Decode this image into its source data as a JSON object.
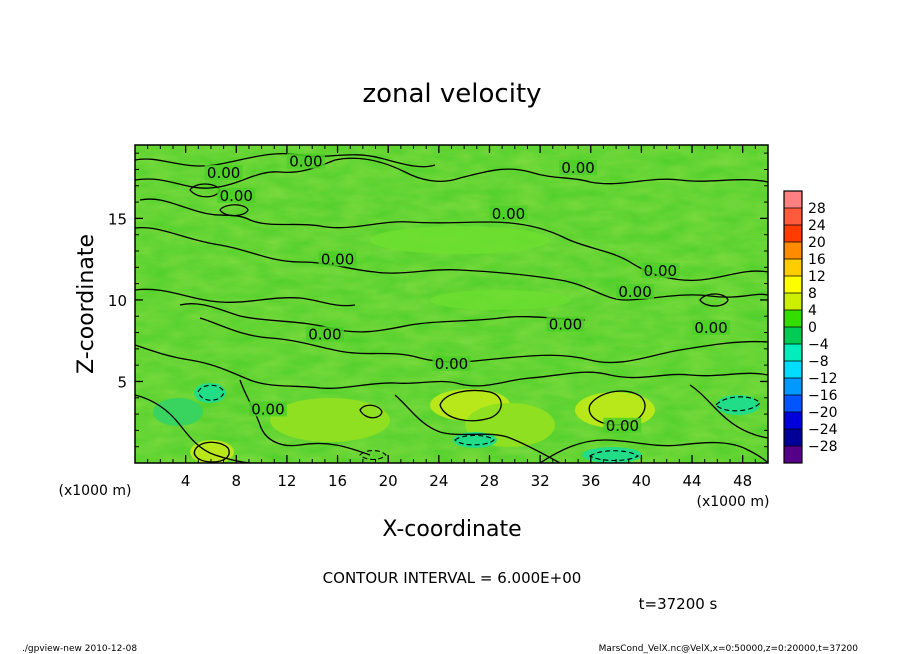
{
  "chart_data": {
    "type": "heatmap",
    "title": "zonal velocity",
    "xlabel": "X-coordinate",
    "ylabel": "Z-coordinate",
    "x_unit_label": "(x1000 m)",
    "y_unit_label": "(x1000 m)",
    "xlim": [
      0,
      50
    ],
    "ylim": [
      0,
      19.5
    ],
    "x_ticks": [
      4,
      8,
      12,
      16,
      20,
      24,
      28,
      32,
      36,
      40,
      44,
      48
    ],
    "y_ticks": [
      5,
      10,
      15
    ],
    "x_tick_labels": [
      "4",
      "8",
      "12",
      "16",
      "20",
      "24",
      "28",
      "32",
      "36",
      "40",
      "44",
      "48"
    ],
    "y_tick_labels": [
      "5",
      "10",
      "15"
    ],
    "colorbar": {
      "levels": [
        28,
        24,
        20,
        16,
        12,
        8,
        4,
        0,
        -4,
        -8,
        -12,
        -16,
        -20,
        -24,
        -28
      ],
      "labels": [
        "28",
        "24",
        "20",
        "16",
        "12",
        "8",
        "4",
        "0",
        "−4",
        "−8",
        "−12",
        "−16",
        "−20",
        "−24",
        "−28"
      ],
      "colors": [
        "#ff8080",
        "#ff5a3c",
        "#ff3c00",
        "#ff8c00",
        "#ffcc00",
        "#ffff00",
        "#ccee00",
        "#33dd00",
        "#00cc55",
        "#00eebb",
        "#00ddff",
        "#0099ff",
        "#0055ff",
        "#0000dd",
        "#000099",
        "#550088"
      ]
    },
    "contour_labels": [
      {
        "x": 7,
        "z": 17.6,
        "text": "0.00"
      },
      {
        "x": 8,
        "z": 16.2,
        "text": "0.00"
      },
      {
        "x": 13.5,
        "z": 18.3,
        "text": "0.00"
      },
      {
        "x": 35,
        "z": 17.9,
        "text": "0.00"
      },
      {
        "x": 29.5,
        "z": 15.1,
        "text": "0.00"
      },
      {
        "x": 16,
        "z": 12.3,
        "text": "0.00"
      },
      {
        "x": 41.5,
        "z": 11.6,
        "text": "0.00"
      },
      {
        "x": 39.5,
        "z": 10.3,
        "text": "0.00"
      },
      {
        "x": 34,
        "z": 8.3,
        "text": "0.00"
      },
      {
        "x": 45.5,
        "z": 8.1,
        "text": "0.00"
      },
      {
        "x": 15,
        "z": 7.7,
        "text": "0.00"
      },
      {
        "x": 25,
        "z": 5.9,
        "text": "0.00"
      },
      {
        "x": 10.5,
        "z": 3.1,
        "text": "0.00"
      },
      {
        "x": 38.5,
        "z": 2.1,
        "text": "0.00"
      }
    ]
  },
  "contour_interval": "CONTOUR INTERVAL = 6.000E+00",
  "time_label": "t=37200 s",
  "footer_left": "./gpview-new  2010-12-08",
  "footer_right": "MarsCond_VelX.nc@VelX,x=0:50000,z=0:20000,t=37200"
}
